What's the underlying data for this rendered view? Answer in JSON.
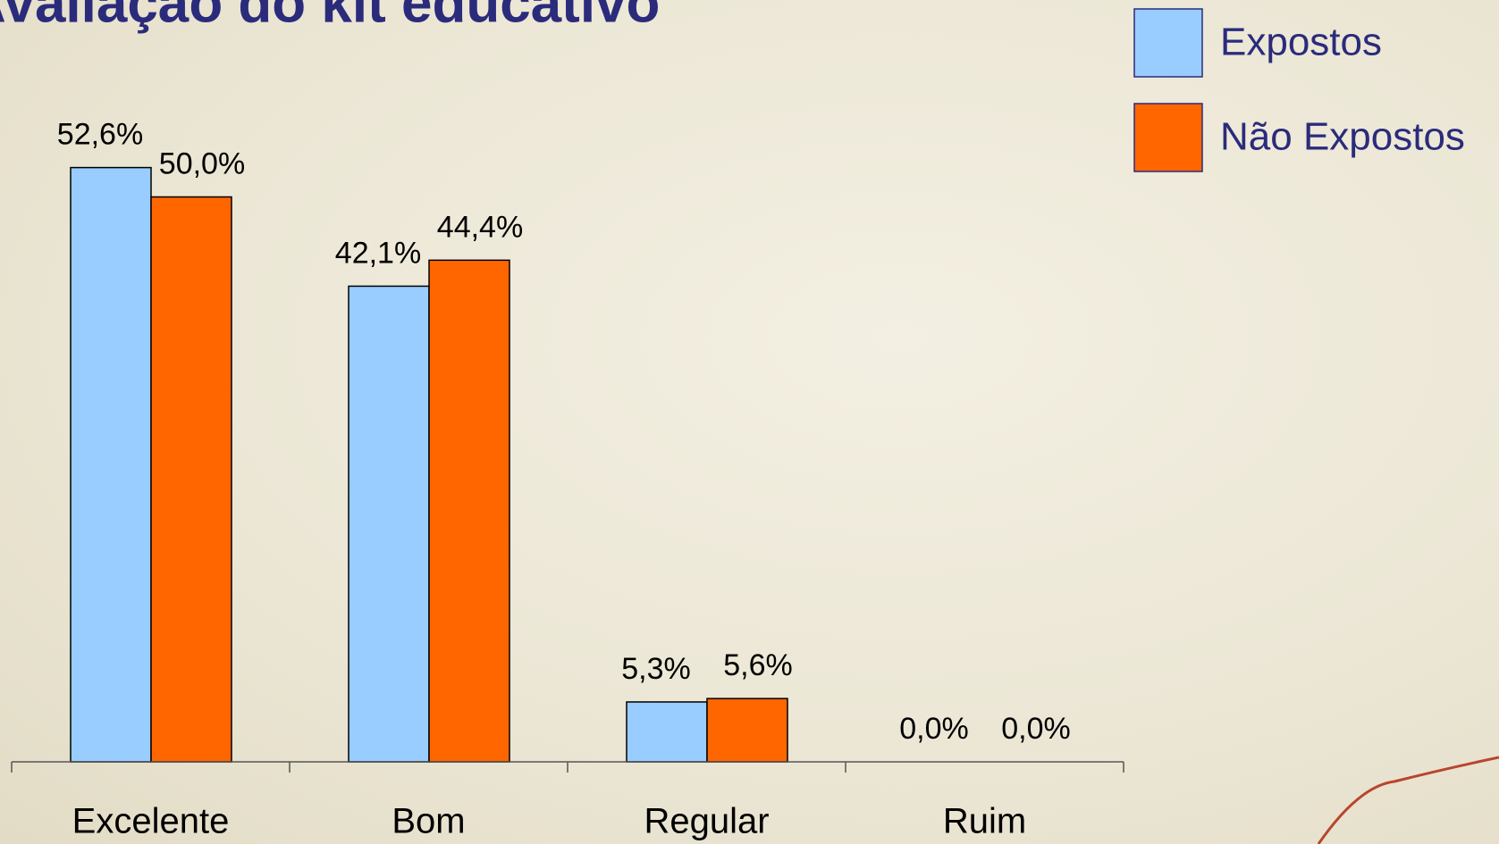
{
  "chart_data": {
    "type": "bar",
    "title": "Avaliação do kit educativo",
    "categories": [
      "Excelente",
      "Bom",
      "Regular",
      "Ruim"
    ],
    "series": [
      {
        "name": "Expostos",
        "color": "#99ccff",
        "values": [
          52.6,
          42.1,
          5.3,
          0.0
        ],
        "value_labels": [
          "52,6%",
          "42,1%",
          "5,3%",
          "0,0%"
        ]
      },
      {
        "name": "Não Expostos",
        "color": "#ff6600",
        "values": [
          50.0,
          44.4,
          5.6,
          0.0
        ],
        "value_labels": [
          "50,0%",
          "44,4%",
          "5,6%",
          "0,0%"
        ]
      }
    ],
    "legend": "top-right"
  }
}
